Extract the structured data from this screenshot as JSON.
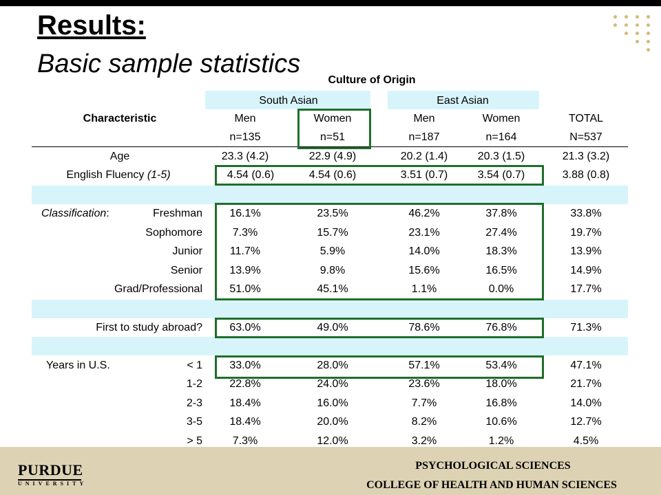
{
  "slide": {
    "title": "Results:",
    "subtitle": "Basic sample statistics"
  },
  "table": {
    "culture_header": "Culture of Origin",
    "groups": [
      "South Asian",
      "East Asian"
    ],
    "characteristic_header": "Characteristic",
    "columns": [
      {
        "label": "Men",
        "n": "n=135"
      },
      {
        "label": "Women",
        "n": "n=51"
      },
      {
        "label": "Men",
        "n": "n=187"
      },
      {
        "label": "Women",
        "n": "n=164"
      },
      {
        "label": "TOTAL",
        "n": "N=537"
      }
    ],
    "rows": [
      {
        "label": "Age",
        "values": [
          "23.3 (4.2)",
          "22.9 (4.9)",
          "20.2 (1.4)",
          "20.3 (1.5)",
          "21.3 (3.2)"
        ]
      },
      {
        "label": "English Fluency",
        "label_note": "(1-5)",
        "values": [
          "4.54 (0.6)",
          "4.54 (0.6)",
          "3.51 (0.7)",
          "3.54 (0.7)",
          "3.88 (0.8)"
        ]
      },
      {
        "group": "Classification",
        "label": "Freshman",
        "values": [
          "16.1%",
          "23.5%",
          "46.2%",
          "37.8%",
          "33.8%"
        ]
      },
      {
        "label": "Sophomore",
        "values": [
          "7.3%",
          "15.7%",
          "23.1%",
          "27.4%",
          "19.7%"
        ]
      },
      {
        "label": "Junior",
        "values": [
          "11.7%",
          "5.9%",
          "14.0%",
          "18.3%",
          "13.9%"
        ]
      },
      {
        "label": "Senior",
        "values": [
          "13.9%",
          "9.8%",
          "15.6%",
          "16.5%",
          "14.9%"
        ]
      },
      {
        "label": "Grad/Professional",
        "values": [
          "51.0%",
          "45.1%",
          "1.1%",
          "0.0%",
          "17.7%"
        ]
      },
      {
        "label": "First to study abroad?",
        "values": [
          "63.0%",
          "49.0%",
          "78.6%",
          "76.8%",
          "71.3%"
        ]
      },
      {
        "group": "Years in U.S.",
        "label": "< 1",
        "values": [
          "33.0%",
          "28.0%",
          "57.1%",
          "53.4%",
          "47.1%"
        ]
      },
      {
        "label": "1-2",
        "values": [
          "22.8%",
          "24.0%",
          "23.6%",
          "18.0%",
          "21.7%"
        ]
      },
      {
        "label": "2-3",
        "values": [
          "18.4%",
          "16.0%",
          "7.7%",
          "16.8%",
          "14.0%"
        ]
      },
      {
        "label": "3-5",
        "values": [
          "18.4%",
          "20.0%",
          "8.2%",
          "10.6%",
          "12.7%"
        ]
      },
      {
        "label": "> 5",
        "values": [
          "7.3%",
          "12.0%",
          "3.2%",
          "1.2%",
          "4.5%"
        ]
      }
    ]
  },
  "footer": {
    "logo_name": "PURDUE",
    "logo_sub": "UNIVERSITY",
    "dept_line1": "PSYCHOLOGICAL SCIENCES",
    "dept_line2": "COLLEGE OF HEALTH AND HUMAN SCIENCES"
  },
  "colors": {
    "band": "#d8f4fb",
    "header_band": "#d8f4fb",
    "highlight_box": "#1e6e2a",
    "footer_bg": "#ddd3b4",
    "accent_dots": "#d4b97a"
  }
}
